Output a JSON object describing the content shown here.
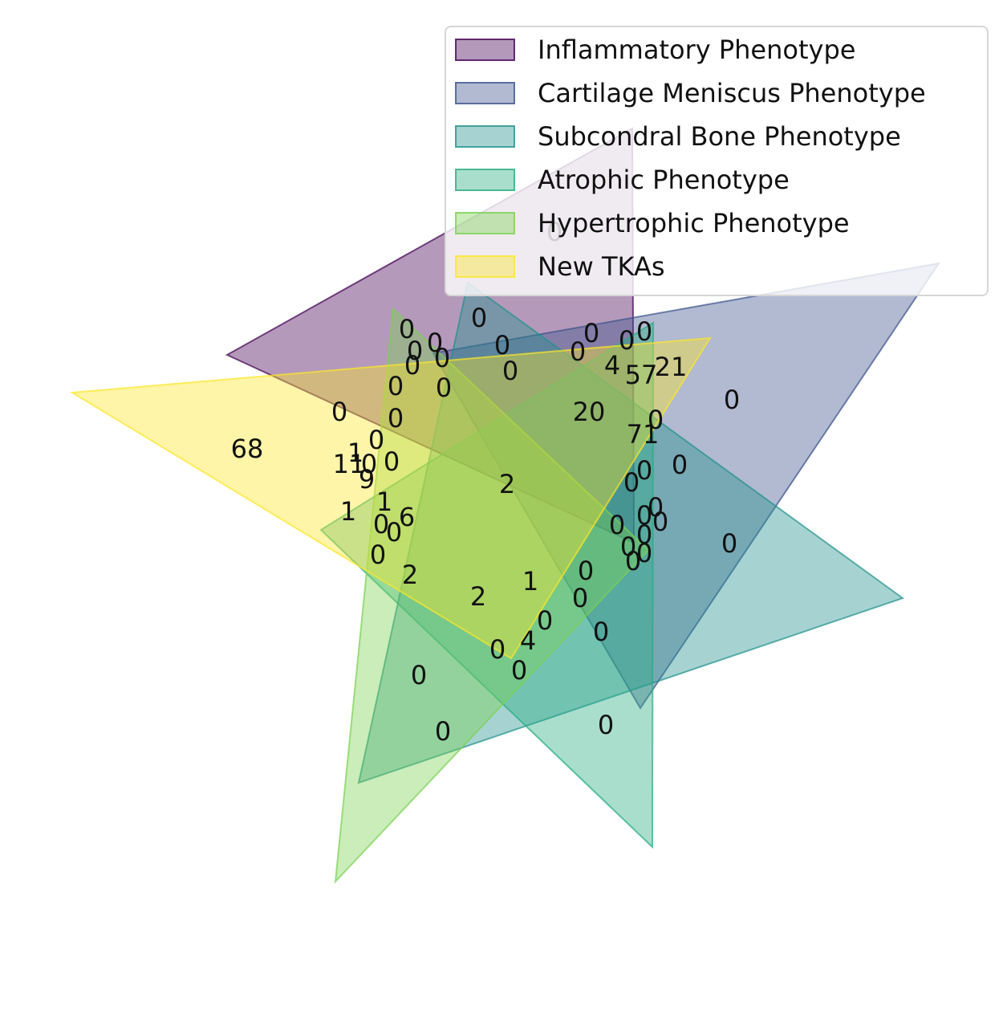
{
  "venn": {
    "sets": [
      {
        "name": "Inflammatory Phenotype",
        "color": "#440154"
      },
      {
        "name": "Cartilage Meniscus Phenotype",
        "color": "#3b528b"
      },
      {
        "name": "Subcondral Bone Phenotype",
        "color": "#21918c"
      },
      {
        "name": "Atrophic Phenotype",
        "color": "#27ad81"
      },
      {
        "name": "Hypertrophic Phenotype",
        "color": "#7ad151"
      },
      {
        "name": "New TKAs",
        "color": "#fde725"
      }
    ],
    "region_counts": [
      "0",
      "0",
      "0",
      "0",
      "0",
      "0",
      "0",
      "0",
      "0",
      "0",
      "0",
      "0",
      "4",
      "57",
      "21",
      "0",
      "0",
      "0",
      "20",
      "0",
      "68",
      "71",
      "0",
      "0",
      "11",
      "9",
      "0",
      "1",
      "0",
      "2",
      "0",
      "0",
      "1",
      "0",
      "1",
      "6",
      "0",
      "0",
      "0",
      "0",
      "0",
      "0",
      "0",
      "0",
      "0",
      "2",
      "0",
      "2",
      "1",
      "0",
      "0",
      "0",
      "4",
      "0",
      "0",
      "0",
      "0",
      "0",
      "0",
      "0",
      "0",
      "0",
      "0"
    ]
  }
}
